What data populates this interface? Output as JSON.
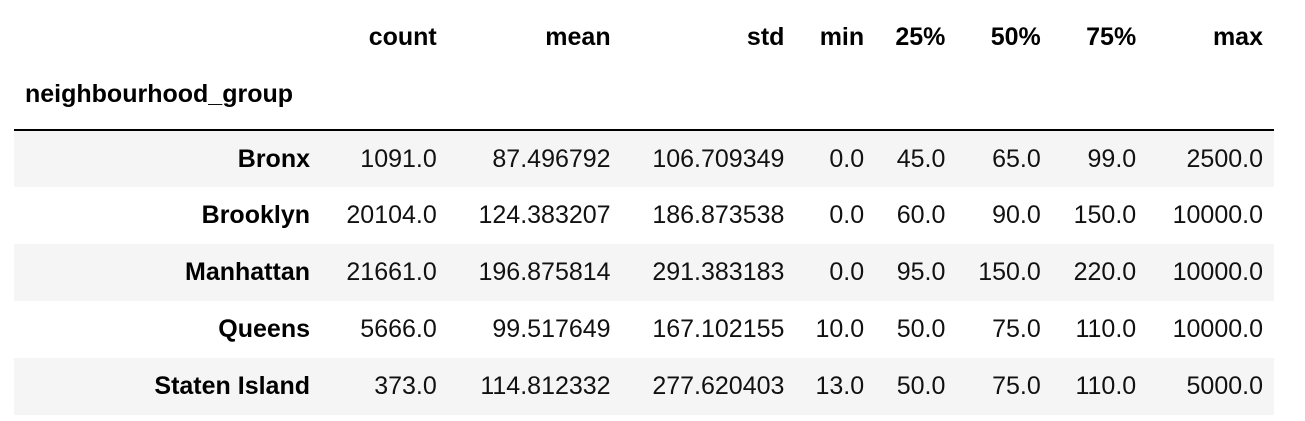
{
  "table": {
    "columns": [
      "count",
      "mean",
      "std",
      "min",
      "25%",
      "50%",
      "75%",
      "max"
    ],
    "index_name": "neighbourhood_group",
    "rows": [
      {
        "label": "Bronx",
        "values": [
          "1091.0",
          "87.496792",
          "106.709349",
          "0.0",
          "45.0",
          "65.0",
          "99.0",
          "2500.0"
        ]
      },
      {
        "label": "Brooklyn",
        "values": [
          "20104.0",
          "124.383207",
          "186.873538",
          "0.0",
          "60.0",
          "90.0",
          "150.0",
          "10000.0"
        ]
      },
      {
        "label": "Manhattan",
        "values": [
          "21661.0",
          "196.875814",
          "291.383183",
          "0.0",
          "95.0",
          "150.0",
          "220.0",
          "10000.0"
        ]
      },
      {
        "label": "Queens",
        "values": [
          "5666.0",
          "99.517649",
          "167.102155",
          "10.0",
          "50.0",
          "75.0",
          "110.0",
          "10000.0"
        ]
      },
      {
        "label": "Staten Island",
        "values": [
          "373.0",
          "114.812332",
          "277.620403",
          "13.0",
          "50.0",
          "75.0",
          "110.0",
          "5000.0"
        ]
      }
    ]
  }
}
